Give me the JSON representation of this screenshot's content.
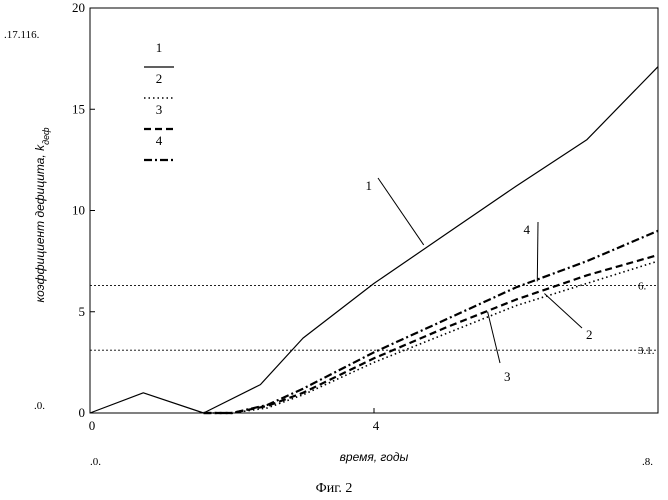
{
  "chart_data": {
    "type": "line",
    "title": "",
    "xlabel": "время, годы",
    "ylabel": "коэффициент дефицита, k",
    "ylabel_subscript": "деф",
    "xlim": [
      0,
      8
    ],
    "ylim": [
      0,
      20
    ],
    "x_ticks": [
      {
        "value": 0,
        "label": "0"
      },
      {
        "value": 4,
        "label": "4"
      }
    ],
    "y_ticks": [
      {
        "value": 0,
        "label": "0"
      },
      {
        "value": 5,
        "label": "5"
      },
      {
        "value": 10,
        "label": "10"
      },
      {
        "value": 15,
        "label": "15"
      },
      {
        "value": 20,
        "label": "20"
      }
    ],
    "corner_labels": {
      "y_top": ".17.116.",
      "y_bottom": ".0.",
      "x_left": ".0.",
      "x_right": ".8."
    },
    "grid": false,
    "reference_lines": [
      {
        "y": 6.3,
        "label": "6."
      },
      {
        "y": 3.1,
        "label": "3.1."
      }
    ],
    "legend": {
      "placement": "top-left",
      "entries": [
        {
          "label": "1",
          "style": "solid"
        },
        {
          "label": "2",
          "style": "dotted"
        },
        {
          "label": "3",
          "style": "dashed"
        },
        {
          "label": "4",
          "style": "dash-dot"
        }
      ]
    },
    "series": [
      {
        "name": "1",
        "style": "solid",
        "x": [
          0,
          0.75,
          1.6,
          2.4,
          3.0,
          4.0,
          5.0,
          6.0,
          7.0,
          8.0
        ],
        "y": [
          0,
          1.0,
          0,
          1.4,
          3.7,
          6.4,
          8.8,
          11.2,
          13.5,
          17.1
        ]
      },
      {
        "name": "2",
        "style": "dotted",
        "x": [
          1.6,
          2.0,
          2.5,
          3.0,
          4.0,
          5.0,
          6.0,
          7.0,
          8.0
        ],
        "y": [
          0,
          0,
          0.25,
          0.9,
          2.5,
          3.9,
          5.3,
          6.4,
          7.5
        ]
      },
      {
        "name": "3",
        "style": "dashed",
        "x": [
          1.6,
          2.0,
          2.5,
          3.0,
          4.0,
          5.0,
          6.0,
          7.0,
          8.0
        ],
        "y": [
          0,
          0,
          0.35,
          1.0,
          2.7,
          4.2,
          5.6,
          6.8,
          7.8
        ]
      },
      {
        "name": "4",
        "style": "dash-dot",
        "x": [
          1.6,
          2.0,
          2.5,
          3.0,
          4.0,
          5.0,
          6.0,
          7.0,
          8.0
        ],
        "y": [
          0,
          0,
          0.4,
          1.2,
          3.0,
          4.6,
          6.2,
          7.5,
          9.0
        ]
      }
    ],
    "annotations": [
      {
        "label": "1",
        "series": "1",
        "point": [
          4.7,
          8.3
        ]
      },
      {
        "label": "4",
        "series": "4",
        "point": [
          6.3,
          6.5
        ]
      },
      {
        "label": "2",
        "series": "2",
        "point": [
          6.4,
          5.9
        ]
      },
      {
        "label": "3",
        "series": "3",
        "point": [
          5.6,
          5.0
        ]
      }
    ]
  },
  "caption": "Фиг. 2",
  "colors": {
    "line": "#000000",
    "background": "#ffffff"
  }
}
